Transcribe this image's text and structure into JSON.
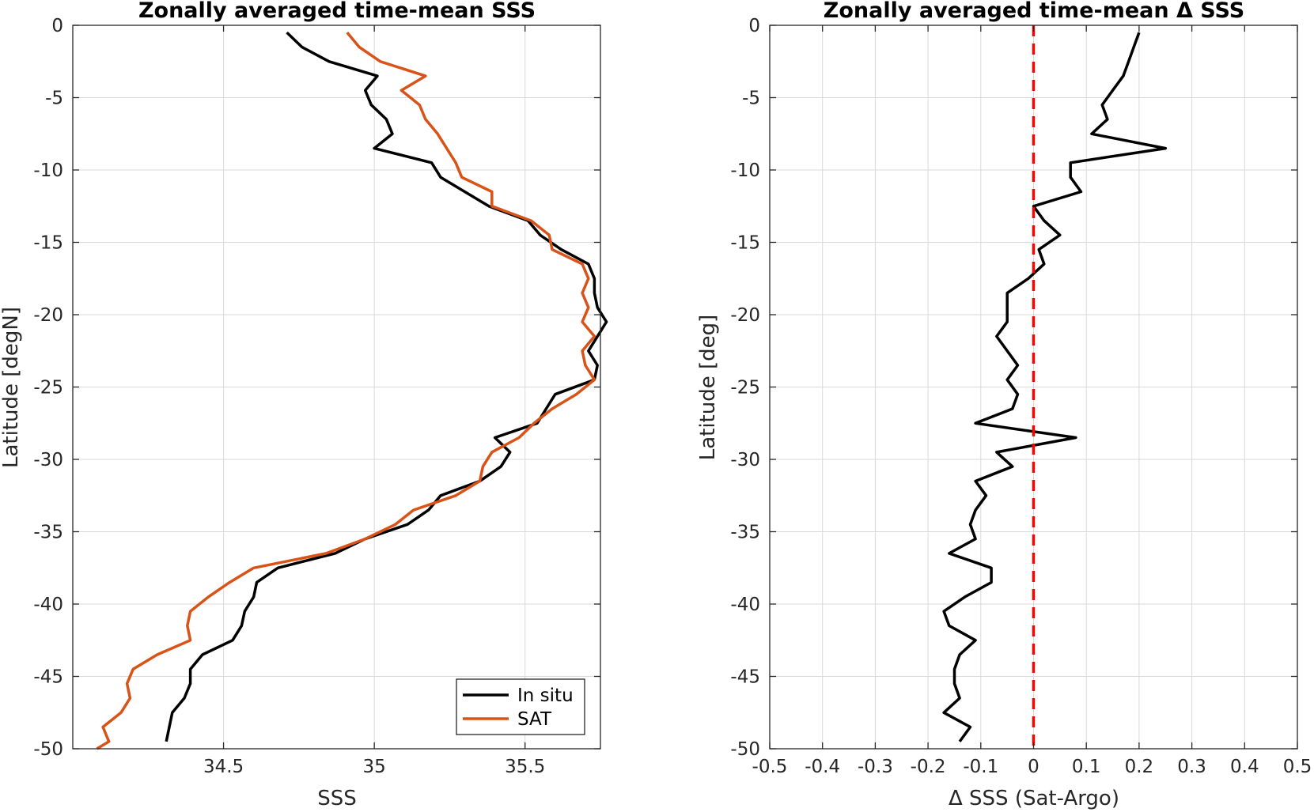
{
  "chart_data": [
    {
      "type": "line",
      "title": "Zonally averaged time-mean SSS",
      "xlabel": "SSS",
      "ylabel": "Latitude [degN]",
      "xlim": [
        34.0,
        35.75
      ],
      "ylim": [
        -50,
        0
      ],
      "xticks": [
        34.5,
        35,
        35.5
      ],
      "xtick_labels": [
        "34.5",
        "35",
        "35.5"
      ],
      "yticks": [
        0,
        -5,
        -10,
        -15,
        -20,
        -25,
        -30,
        -35,
        -40,
        -45,
        -50
      ],
      "ytick_labels": [
        "0",
        "-5",
        "-10",
        "-15",
        "-20",
        "-25",
        "-30",
        "-35",
        "-40",
        "-45",
        "-50"
      ],
      "grid": true,
      "legend": "bottom-right",
      "series": [
        {
          "name": "In situ",
          "color": "#000000",
          "points": [
            [
              34.71,
              -0.5
            ],
            [
              34.76,
              -1.5
            ],
            [
              34.85,
              -2.5
            ],
            [
              35.01,
              -3.5
            ],
            [
              34.97,
              -4.5
            ],
            [
              34.99,
              -5.5
            ],
            [
              35.04,
              -6.5
            ],
            [
              35.06,
              -7.5
            ],
            [
              35.0,
              -8.5
            ],
            [
              35.19,
              -9.5
            ],
            [
              35.22,
              -10.5
            ],
            [
              35.3,
              -11.5
            ],
            [
              35.38,
              -12.5
            ],
            [
              35.51,
              -13.5
            ],
            [
              35.55,
              -14.5
            ],
            [
              35.62,
              -15.5
            ],
            [
              35.71,
              -16.5
            ],
            [
              35.73,
              -17.5
            ],
            [
              35.73,
              -18.5
            ],
            [
              35.74,
              -19.5
            ],
            [
              35.77,
              -20.5
            ],
            [
              35.74,
              -21.5
            ],
            [
              35.71,
              -22.5
            ],
            [
              35.74,
              -23.5
            ],
            [
              35.73,
              -24.5
            ],
            [
              35.6,
              -25.5
            ],
            [
              35.57,
              -26.5
            ],
            [
              35.54,
              -27.5
            ],
            [
              35.4,
              -28.5
            ],
            [
              35.45,
              -29.5
            ],
            [
              35.42,
              -30.5
            ],
            [
              35.35,
              -31.5
            ],
            [
              35.22,
              -32.5
            ],
            [
              35.18,
              -33.5
            ],
            [
              35.11,
              -34.5
            ],
            [
              34.97,
              -35.5
            ],
            [
              34.87,
              -36.5
            ],
            [
              34.68,
              -37.5
            ],
            [
              34.61,
              -38.5
            ],
            [
              34.6,
              -39.5
            ],
            [
              34.57,
              -40.5
            ],
            [
              34.56,
              -41.5
            ],
            [
              34.53,
              -42.5
            ],
            [
              34.43,
              -43.5
            ],
            [
              34.39,
              -44.5
            ],
            [
              34.39,
              -45.5
            ],
            [
              34.37,
              -46.5
            ],
            [
              34.33,
              -47.5
            ],
            [
              34.32,
              -48.5
            ],
            [
              34.31,
              -49.5
            ]
          ]
        },
        {
          "name": "SAT",
          "color": "#d95319",
          "points": [
            [
              34.91,
              -0.5
            ],
            [
              34.95,
              -1.5
            ],
            [
              35.02,
              -2.5
            ],
            [
              35.17,
              -3.5
            ],
            [
              35.09,
              -4.5
            ],
            [
              35.15,
              -5.5
            ],
            [
              35.17,
              -6.5
            ],
            [
              35.21,
              -7.5
            ],
            [
              35.24,
              -8.5
            ],
            [
              35.27,
              -9.5
            ],
            [
              35.29,
              -10.5
            ],
            [
              35.39,
              -11.5
            ],
            [
              35.39,
              -12.5
            ],
            [
              35.52,
              -13.5
            ],
            [
              35.58,
              -14.5
            ],
            [
              35.59,
              -15.5
            ],
            [
              35.69,
              -16.5
            ],
            [
              35.71,
              -17.5
            ],
            [
              35.69,
              -18.5
            ],
            [
              35.71,
              -19.5
            ],
            [
              35.69,
              -20.5
            ],
            [
              35.73,
              -21.5
            ],
            [
              35.69,
              -22.5
            ],
            [
              35.7,
              -23.5
            ],
            [
              35.73,
              -24.5
            ],
            [
              35.67,
              -25.5
            ],
            [
              35.59,
              -26.5
            ],
            [
              35.53,
              -27.5
            ],
            [
              35.48,
              -28.5
            ],
            [
              35.39,
              -29.5
            ],
            [
              35.36,
              -30.5
            ],
            [
              35.35,
              -31.5
            ],
            [
              35.27,
              -32.5
            ],
            [
              35.13,
              -33.5
            ],
            [
              35.07,
              -34.5
            ],
            [
              34.97,
              -35.5
            ],
            [
              34.84,
              -36.5
            ],
            [
              34.6,
              -37.5
            ],
            [
              34.52,
              -38.5
            ],
            [
              34.45,
              -39.5
            ],
            [
              34.39,
              -40.5
            ],
            [
              34.38,
              -41.5
            ],
            [
              34.39,
              -42.5
            ],
            [
              34.28,
              -43.5
            ],
            [
              34.2,
              -44.5
            ],
            [
              34.18,
              -45.5
            ],
            [
              34.19,
              -46.5
            ],
            [
              34.16,
              -47.5
            ],
            [
              34.1,
              -48.5
            ],
            [
              34.12,
              -49.5
            ],
            [
              34.08,
              -50.0
            ]
          ]
        }
      ]
    },
    {
      "type": "line",
      "title": "Zonally averaged time-mean Δ SSS",
      "xlabel": "Δ SSS (Sat-Argo)",
      "ylabel": "Latitude [deg]",
      "xlim": [
        -0.5,
        0.5
      ],
      "ylim": [
        -50,
        0
      ],
      "xticks": [
        -0.5,
        -0.4,
        -0.3,
        -0.2,
        -0.1,
        0,
        0.1,
        0.2,
        0.3,
        0.4,
        0.5
      ],
      "xtick_labels": [
        "-0.5",
        "-0.4",
        "-0.3",
        "-0.2",
        "-0.1",
        "0",
        "0.1",
        "0.2",
        "0.3",
        "0.4",
        "0.5"
      ],
      "yticks": [
        0,
        -5,
        -10,
        -15,
        -20,
        -25,
        -30,
        -35,
        -40,
        -45,
        -50
      ],
      "ytick_labels": [
        "0",
        "-5",
        "-10",
        "-15",
        "-20",
        "-25",
        "-30",
        "-35",
        "-40",
        "-45",
        "-50"
      ],
      "grid": true,
      "reference_line": {
        "x": 0,
        "color": "#ff0000",
        "style": "dashed"
      },
      "series": [
        {
          "color": "#000000",
          "points": [
            [
              0.2,
              -0.5
            ],
            [
              0.19,
              -1.5
            ],
            [
              0.18,
              -2.5
            ],
            [
              0.17,
              -3.5
            ],
            [
              0.15,
              -4.5
            ],
            [
              0.13,
              -5.5
            ],
            [
              0.14,
              -6.5
            ],
            [
              0.11,
              -7.5
            ],
            [
              0.25,
              -8.5
            ],
            [
              0.07,
              -9.5
            ],
            [
              0.07,
              -10.5
            ],
            [
              0.09,
              -11.5
            ],
            [
              0.0,
              -12.5
            ],
            [
              0.02,
              -13.5
            ],
            [
              0.05,
              -14.5
            ],
            [
              0.01,
              -15.5
            ],
            [
              0.02,
              -16.5
            ],
            [
              -0.01,
              -17.5
            ],
            [
              -0.05,
              -18.5
            ],
            [
              -0.05,
              -19.5
            ],
            [
              -0.05,
              -20.5
            ],
            [
              -0.07,
              -21.5
            ],
            [
              -0.05,
              -22.5
            ],
            [
              -0.03,
              -23.5
            ],
            [
              -0.05,
              -24.5
            ],
            [
              -0.03,
              -25.5
            ],
            [
              -0.04,
              -26.5
            ],
            [
              -0.11,
              -27.5
            ],
            [
              0.08,
              -28.5
            ],
            [
              -0.07,
              -29.5
            ],
            [
              -0.04,
              -30.5
            ],
            [
              -0.11,
              -31.5
            ],
            [
              -0.09,
              -32.5
            ],
            [
              -0.11,
              -33.5
            ],
            [
              -0.12,
              -34.5
            ],
            [
              -0.11,
              -35.5
            ],
            [
              -0.16,
              -36.5
            ],
            [
              -0.08,
              -37.5
            ],
            [
              -0.08,
              -38.5
            ],
            [
              -0.13,
              -39.5
            ],
            [
              -0.17,
              -40.5
            ],
            [
              -0.16,
              -41.5
            ],
            [
              -0.11,
              -42.5
            ],
            [
              -0.14,
              -43.5
            ],
            [
              -0.15,
              -44.5
            ],
            [
              -0.15,
              -45.5
            ],
            [
              -0.14,
              -46.5
            ],
            [
              -0.17,
              -47.5
            ],
            [
              -0.12,
              -48.5
            ],
            [
              -0.14,
              -49.5
            ]
          ]
        }
      ]
    }
  ]
}
